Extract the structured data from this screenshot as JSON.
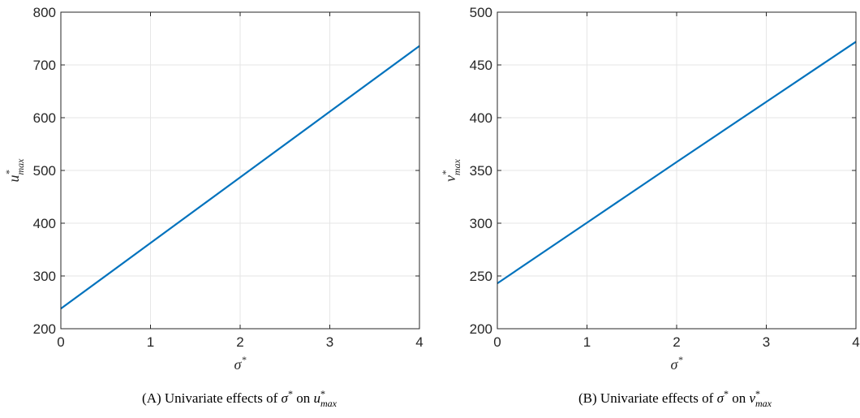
{
  "chart_data": [
    {
      "type": "line",
      "xlabel_base": "σ",
      "xlabel_sup": "*",
      "ylabel_base": "u",
      "ylabel_sup": "*",
      "ylabel_sub": "max",
      "xlim": [
        0,
        4
      ],
      "ylim": [
        200,
        800
      ],
      "xticks": [
        0,
        1,
        2,
        3,
        4
      ],
      "yticks": [
        200,
        300,
        400,
        500,
        600,
        700,
        800
      ],
      "grid": true,
      "series": [
        {
          "x": [
            0,
            1,
            2,
            3,
            4
          ],
          "values": [
            238,
            362.5,
            487,
            611.5,
            736
          ],
          "color": "#0072BD"
        }
      ],
      "caption": {
        "prefix": "(A) Univariate effects of ",
        "var1": "σ",
        "var1_sup": "*",
        "middle": " on ",
        "var2": "u",
        "var2_sup": "*",
        "var2_sub": "max"
      }
    },
    {
      "type": "line",
      "xlabel_base": "σ",
      "xlabel_sup": "*",
      "ylabel_base": "v",
      "ylabel_sup": "*",
      "ylabel_sub": "max",
      "xlim": [
        0,
        4
      ],
      "ylim": [
        200,
        500
      ],
      "xticks": [
        0,
        1,
        2,
        3,
        4
      ],
      "yticks": [
        200,
        250,
        300,
        350,
        400,
        450,
        500
      ],
      "grid": true,
      "series": [
        {
          "x": [
            0,
            1,
            2,
            3,
            4
          ],
          "values": [
            243,
            300.5,
            358,
            415,
            472
          ],
          "color": "#0072BD"
        }
      ],
      "caption": {
        "prefix": "(B) Univariate effects of ",
        "var1": "σ",
        "var1_sup": "*",
        "middle": " on ",
        "var2": "v",
        "var2_sup": "*",
        "var2_sub": "max"
      }
    }
  ]
}
